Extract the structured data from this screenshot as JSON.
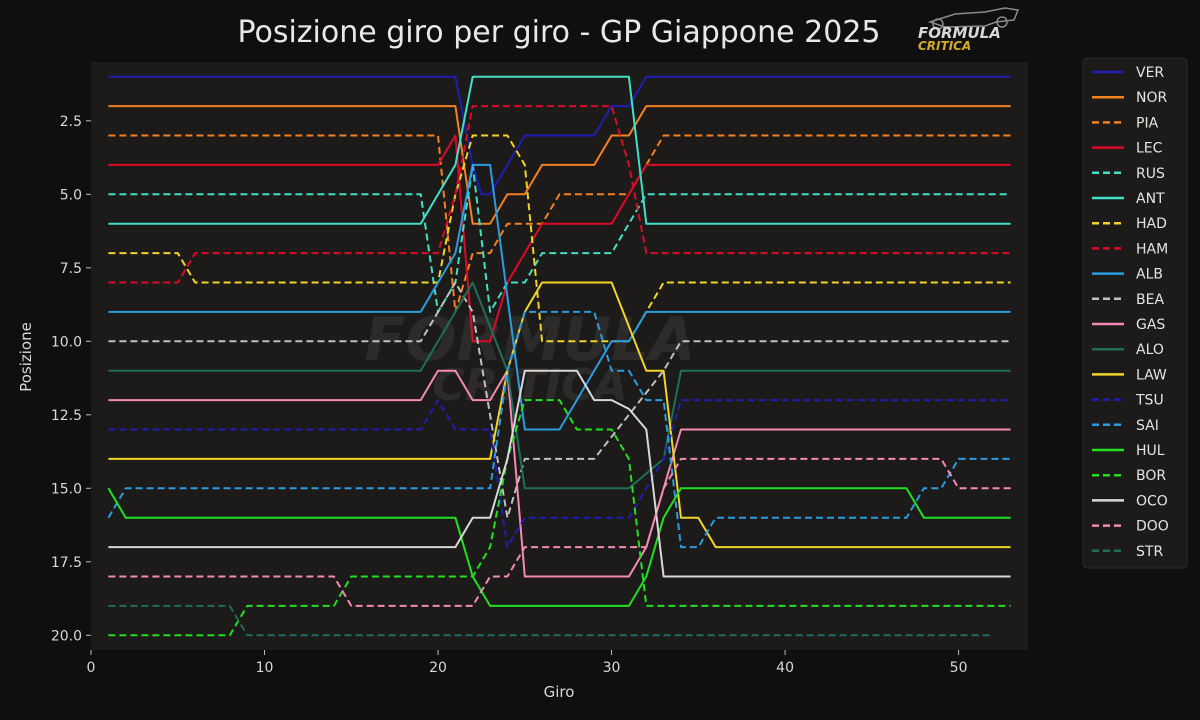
{
  "chart_data": {
    "type": "line",
    "title": "Posizione giro per giro - GP Giappone 2025",
    "xlabel": "Giro",
    "ylabel": "Posizione",
    "xlim": [
      0,
      54
    ],
    "ylim": [
      20.5,
      0.5
    ],
    "y_inverted": true,
    "xticks": [
      0,
      10,
      20,
      30,
      40,
      50
    ],
    "yticks": [
      2.5,
      5.0,
      7.5,
      10.0,
      12.5,
      15.0,
      17.5,
      20.0
    ],
    "ytick_labels": [
      "2.5",
      "5.0",
      "7.5",
      "10.0",
      "12.5",
      "15.0",
      "17.5",
      "20.0"
    ],
    "xtick_labels": [
      "0",
      "10",
      "20",
      "30",
      "40",
      "50"
    ],
    "grid": false,
    "legend_position": "outside-right",
    "background": "#1c1b19",
    "series": [
      {
        "name": "VER",
        "color": "#1e1eb4",
        "dash": "solid",
        "points": [
          [
            1,
            1
          ],
          [
            21,
            1
          ],
          [
            22,
            4
          ],
          [
            22.5,
            5
          ],
          [
            23,
            5
          ],
          [
            24,
            4
          ],
          [
            25,
            3
          ],
          [
            29,
            3
          ],
          [
            30,
            2
          ],
          [
            31,
            2
          ],
          [
            32,
            1
          ],
          [
            53,
            1
          ]
        ]
      },
      {
        "name": "NOR",
        "color": "#f58020",
        "dash": "solid",
        "points": [
          [
            1,
            2
          ],
          [
            21,
            2
          ],
          [
            22,
            6
          ],
          [
            23,
            6
          ],
          [
            24,
            5
          ],
          [
            25,
            5
          ],
          [
            26,
            4
          ],
          [
            29,
            4
          ],
          [
            30,
            3
          ],
          [
            31,
            3
          ],
          [
            32,
            2
          ],
          [
            53,
            2
          ]
        ]
      },
      {
        "name": "PIA",
        "color": "#f58020",
        "dash": "dashed",
        "points": [
          [
            1,
            3
          ],
          [
            20,
            3
          ],
          [
            21,
            9
          ],
          [
            22,
            7
          ],
          [
            23,
            7
          ],
          [
            24,
            6
          ],
          [
            26,
            6
          ],
          [
            27,
            5
          ],
          [
            31,
            5
          ],
          [
            32,
            4
          ],
          [
            33,
            3
          ],
          [
            53,
            3
          ]
        ]
      },
      {
        "name": "LEC",
        "color": "#dc0a28",
        "dash": "solid",
        "points": [
          [
            1,
            4
          ],
          [
            20,
            4
          ],
          [
            21,
            3
          ],
          [
            22,
            10
          ],
          [
            23,
            10
          ],
          [
            24,
            8
          ],
          [
            26,
            6
          ],
          [
            30,
            6
          ],
          [
            31,
            5
          ],
          [
            32,
            4
          ],
          [
            53,
            4
          ]
        ]
      },
      {
        "name": "RUS",
        "color": "#40e0c8",
        "dash": "dashed",
        "points": [
          [
            1,
            5
          ],
          [
            19,
            5
          ],
          [
            20,
            9
          ],
          [
            21,
            8
          ],
          [
            22,
            4
          ],
          [
            23,
            9
          ],
          [
            24,
            8
          ],
          [
            25,
            8
          ],
          [
            26,
            7
          ],
          [
            30,
            7
          ],
          [
            31,
            6
          ],
          [
            32,
            5
          ],
          [
            53,
            5
          ]
        ]
      },
      {
        "name": "ANT",
        "color": "#40e0c8",
        "dash": "solid",
        "points": [
          [
            1,
            6
          ],
          [
            19,
            6
          ],
          [
            21,
            4
          ],
          [
            22,
            1
          ],
          [
            31,
            1
          ],
          [
            32,
            6
          ],
          [
            53,
            6
          ]
        ]
      },
      {
        "name": "HAD",
        "color": "#f2d327",
        "dash": "dashed",
        "points": [
          [
            1,
            7
          ],
          [
            5,
            7
          ],
          [
            6,
            8
          ],
          [
            20,
            8
          ],
          [
            21,
            5
          ],
          [
            22,
            3
          ],
          [
            24,
            3
          ],
          [
            25,
            4
          ],
          [
            26,
            10
          ],
          [
            31,
            10
          ],
          [
            32,
            9
          ],
          [
            33,
            8
          ],
          [
            53,
            8
          ]
        ]
      },
      {
        "name": "HAM",
        "color": "#dc0a28",
        "dash": "dashed",
        "points": [
          [
            1,
            8
          ],
          [
            5,
            8
          ],
          [
            6,
            7
          ],
          [
            20,
            7
          ],
          [
            21,
            5
          ],
          [
            22,
            2
          ],
          [
            30,
            2
          ],
          [
            31,
            4
          ],
          [
            32,
            7
          ],
          [
            53,
            7
          ]
        ]
      },
      {
        "name": "ALB",
        "color": "#2a9ce0",
        "dash": "solid",
        "points": [
          [
            1,
            9
          ],
          [
            19,
            9
          ],
          [
            21,
            7
          ],
          [
            22,
            4
          ],
          [
            23,
            4
          ],
          [
            25,
            13
          ],
          [
            27,
            13
          ],
          [
            29,
            11
          ],
          [
            30,
            10
          ],
          [
            31,
            10
          ],
          [
            32,
            9
          ],
          [
            53,
            9
          ]
        ]
      },
      {
        "name": "BEA",
        "color": "#c0c0c0",
        "dash": "dashed",
        "points": [
          [
            1,
            10
          ],
          [
            19,
            10
          ],
          [
            21,
            8
          ],
          [
            22,
            9
          ],
          [
            24,
            16
          ],
          [
            25,
            14
          ],
          [
            29,
            14
          ],
          [
            33,
            11
          ],
          [
            34,
            10
          ],
          [
            53,
            10
          ]
        ]
      },
      {
        "name": "GAS",
        "color": "#f58ab4",
        "dash": "solid",
        "points": [
          [
            1,
            12
          ],
          [
            19,
            12
          ],
          [
            20,
            11
          ],
          [
            21,
            11
          ],
          [
            22,
            12
          ],
          [
            23,
            12
          ],
          [
            24,
            11
          ],
          [
            25,
            18
          ],
          [
            31,
            18
          ],
          [
            32,
            17
          ],
          [
            34,
            13
          ],
          [
            53,
            13
          ]
        ]
      },
      {
        "name": "ALO",
        "color": "#1f6e5a",
        "dash": "solid",
        "points": [
          [
            1,
            11
          ],
          [
            19,
            11
          ],
          [
            21,
            9
          ],
          [
            22,
            8
          ],
          [
            24,
            11
          ],
          [
            25,
            15
          ],
          [
            31,
            15
          ],
          [
            33,
            14
          ],
          [
            34,
            11
          ],
          [
            53,
            11
          ]
        ]
      },
      {
        "name": "LAW",
        "color": "#f2d327",
        "dash": "solid",
        "points": [
          [
            1,
            14
          ],
          [
            23,
            14
          ],
          [
            24,
            11
          ],
          [
            25,
            9
          ],
          [
            26,
            8
          ],
          [
            30,
            8
          ],
          [
            32,
            11
          ],
          [
            33,
            11
          ],
          [
            34,
            16
          ],
          [
            35,
            16
          ],
          [
            36,
            17
          ],
          [
            53,
            17
          ]
        ]
      },
      {
        "name": "TSU",
        "color": "#1e1eb4",
        "dash": "dashed",
        "points": [
          [
            1,
            13
          ],
          [
            19,
            13
          ],
          [
            20,
            12
          ],
          [
            21,
            13
          ],
          [
            23,
            13
          ],
          [
            24,
            17
          ],
          [
            25,
            16
          ],
          [
            31,
            16
          ],
          [
            33,
            14
          ],
          [
            34,
            12
          ],
          [
            53,
            12
          ]
        ]
      },
      {
        "name": "SAI",
        "color": "#2a9ce0",
        "dash": "dashed",
        "points": [
          [
            1,
            16
          ],
          [
            2,
            15
          ],
          [
            23,
            15
          ],
          [
            24,
            11
          ],
          [
            25,
            9
          ],
          [
            29,
            9
          ],
          [
            30,
            11
          ],
          [
            31,
            11
          ],
          [
            32,
            12
          ],
          [
            33,
            12
          ],
          [
            34,
            17
          ],
          [
            35,
            17
          ],
          [
            36,
            16
          ],
          [
            47,
            16
          ],
          [
            48,
            15
          ],
          [
            49,
            15
          ],
          [
            50,
            14
          ],
          [
            53,
            14
          ]
        ]
      },
      {
        "name": "HUL",
        "color": "#20e020",
        "dash": "solid",
        "points": [
          [
            1,
            15
          ],
          [
            2,
            16
          ],
          [
            21,
            16
          ],
          [
            22,
            18
          ],
          [
            23,
            19
          ],
          [
            31,
            19
          ],
          [
            32,
            18
          ],
          [
            33,
            16
          ],
          [
            34,
            15
          ],
          [
            47,
            15
          ],
          [
            48,
            16
          ],
          [
            53,
            16
          ]
        ]
      },
      {
        "name": "BOR",
        "color": "#20e020",
        "dash": "dashed",
        "points": [
          [
            1,
            20
          ],
          [
            8,
            20
          ],
          [
            9,
            19
          ],
          [
            14,
            19
          ],
          [
            15,
            18
          ],
          [
            22,
            18
          ],
          [
            23,
            17
          ],
          [
            24,
            14
          ],
          [
            25,
            12
          ],
          [
            27,
            12
          ],
          [
            28,
            13
          ],
          [
            30,
            13
          ],
          [
            31,
            14
          ],
          [
            32,
            19
          ],
          [
            53,
            19
          ]
        ]
      },
      {
        "name": "OCO",
        "color": "#d8d8d8",
        "dash": "solid",
        "points": [
          [
            1,
            17
          ],
          [
            21,
            17
          ],
          [
            22,
            16
          ],
          [
            23,
            16
          ],
          [
            24,
            14
          ],
          [
            25,
            11
          ],
          [
            28,
            11
          ],
          [
            29,
            12
          ],
          [
            30,
            12
          ],
          [
            31,
            12.3
          ],
          [
            32,
            13
          ],
          [
            33,
            18
          ],
          [
            53,
            18
          ]
        ]
      },
      {
        "name": "DOO",
        "color": "#f58ab4",
        "dash": "dashed",
        "points": [
          [
            1,
            18
          ],
          [
            14,
            18
          ],
          [
            15,
            19
          ],
          [
            22,
            19
          ],
          [
            23,
            18
          ],
          [
            24,
            18
          ],
          [
            25,
            17
          ],
          [
            31,
            17
          ],
          [
            32,
            17
          ],
          [
            33,
            15
          ],
          [
            34,
            14
          ],
          [
            49,
            14
          ],
          [
            50,
            15
          ],
          [
            53,
            15
          ]
        ]
      },
      {
        "name": "STR",
        "color": "#1f6e5a",
        "dash": "dashed",
        "points": [
          [
            1,
            19
          ],
          [
            8,
            19
          ],
          [
            9,
            20
          ],
          [
            52,
            20
          ]
        ]
      }
    ]
  },
  "logo": {
    "line1": "FORMULA",
    "line2": "CRITICA"
  }
}
